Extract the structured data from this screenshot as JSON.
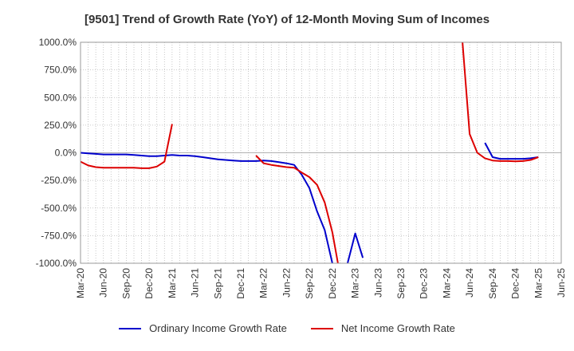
{
  "chart_data": {
    "type": "line",
    "title": "[9501]  Trend of Growth Rate (YoY) of 12-Month Moving Sum of Incomes",
    "ylim": [
      -1000,
      1000
    ],
    "yticks": [
      1000,
      750,
      500,
      250,
      0,
      -250,
      -500,
      -750,
      -1000
    ],
    "ytick_labels": [
      "1000.0%",
      "750.0%",
      "500.0%",
      "250.0%",
      "0.0%",
      "-250.0%",
      "-500.0%",
      "-750.0%",
      "-1000.0%"
    ],
    "xtick_labels": [
      "Mar-20",
      "Jun-20",
      "Sep-20",
      "Dec-20",
      "Mar-21",
      "Jun-21",
      "Sep-21",
      "Dec-21",
      "Mar-22",
      "Jun-22",
      "Sep-22",
      "Dec-22",
      "Mar-23",
      "Jun-23",
      "Sep-23",
      "Dec-23",
      "Mar-24",
      "Jun-24",
      "Sep-24",
      "Dec-24",
      "Mar-25",
      "Jun-25"
    ],
    "x_months": [
      "2020-03",
      "2020-04",
      "2020-05",
      "2020-06",
      "2020-07",
      "2020-08",
      "2020-09",
      "2020-10",
      "2020-11",
      "2020-12",
      "2021-01",
      "2021-02",
      "2021-03",
      "2021-04",
      "2021-05",
      "2021-06",
      "2021-07",
      "2021-08",
      "2021-09",
      "2021-10",
      "2021-11",
      "2021-12",
      "2022-01",
      "2022-02",
      "2022-03",
      "2022-04",
      "2022-05",
      "2022-06",
      "2022-07",
      "2022-08",
      "2022-09",
      "2022-10",
      "2022-11",
      "2022-12",
      "2023-01",
      "2023-02",
      "2023-03",
      "2023-04",
      "2023-05",
      "2023-06",
      "2023-07",
      "2023-08",
      "2023-09",
      "2023-10",
      "2023-11",
      "2023-12",
      "2024-01",
      "2024-02",
      "2024-03",
      "2024-04",
      "2024-05",
      "2024-06",
      "2024-07",
      "2024-08",
      "2024-09",
      "2024-10",
      "2024-11",
      "2024-12",
      "2025-01",
      "2025-02",
      "2025-03",
      "2025-04",
      "2025-05",
      "2025-06"
    ],
    "grid": true,
    "legend_position": "bottom",
    "series": [
      {
        "name": "Ordinary Income Growth Rate",
        "color": "#0000cc",
        "values": [
          0,
          -5,
          -10,
          -15,
          -15,
          -15,
          -15,
          -20,
          -25,
          -30,
          -30,
          -25,
          -20,
          -25,
          -25,
          -30,
          -40,
          -50,
          -60,
          -65,
          -70,
          -75,
          -75,
          -75,
          -70,
          -75,
          -85,
          -95,
          -110,
          -200,
          -320,
          -530,
          -700,
          -1000,
          -1400,
          -1000,
          -730,
          -950,
          null,
          null,
          null,
          null,
          null,
          null,
          null,
          null,
          null,
          null,
          null,
          null,
          null,
          null,
          null,
          90,
          -40,
          -55,
          -55,
          -55,
          -55,
          -50,
          -40,
          null,
          null,
          null
        ]
      },
      {
        "name": "Net Income Growth Rate",
        "color": "#dd0000",
        "values": [
          -80,
          -115,
          -130,
          -135,
          -135,
          -135,
          -135,
          -135,
          -140,
          -140,
          -125,
          -80,
          260,
          null,
          null,
          null,
          null,
          null,
          null,
          null,
          null,
          null,
          null,
          -25,
          -95,
          -110,
          -120,
          -130,
          -135,
          -180,
          -220,
          -290,
          -450,
          -720,
          -1100,
          null,
          null,
          null,
          null,
          null,
          null,
          null,
          null,
          null,
          null,
          null,
          null,
          null,
          null,
          null,
          1050,
          170,
          0,
          -50,
          -70,
          -75,
          -75,
          -78,
          -75,
          -65,
          -40,
          null,
          null,
          null
        ]
      }
    ]
  }
}
